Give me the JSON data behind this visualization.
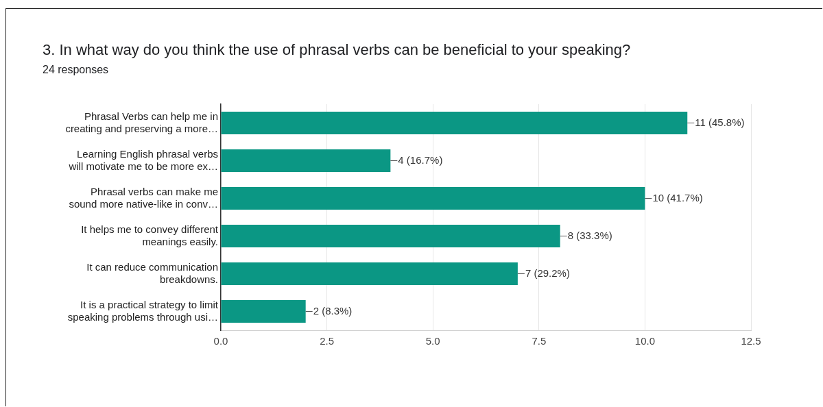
{
  "chart_data": {
    "type": "bar",
    "orientation": "horizontal",
    "title": "3. In what way do you think the use of phrasal verbs can be beneficial to your speaking?",
    "subtitle": "24 responses",
    "categories": [
      "Phrasal Verbs can help me in\ncreating and preserving a more…",
      "Learning English phrasal verbs\nwill motivate me to be more ex…",
      "Phrasal verbs can make me\nsound more native-like in conv…",
      "It helps me to convey different\nmeanings easily.",
      "It can reduce communication\nbreakdowns.",
      "It is a practical strategy to limit\nspeaking problems through usi…"
    ],
    "values": [
      11,
      4,
      10,
      8,
      7,
      2
    ],
    "value_labels": [
      "11 (45.8%)",
      "4 (16.7%)",
      "10 (41.7%)",
      "8 (33.3%)",
      "7 (29.2%)",
      "2 (8.3%)"
    ],
    "color": "#0b9784",
    "xlim": [
      0,
      12.5
    ],
    "xticks": [
      {
        "value": 0,
        "label": "0.0"
      },
      {
        "value": 2.5,
        "label": "2.5"
      },
      {
        "value": 5,
        "label": "5.0"
      },
      {
        "value": 7.5,
        "label": "7.5"
      },
      {
        "value": 10,
        "label": "10.0"
      },
      {
        "value": 12.5,
        "label": "12.5"
      }
    ],
    "grid": "x",
    "legend": false
  }
}
